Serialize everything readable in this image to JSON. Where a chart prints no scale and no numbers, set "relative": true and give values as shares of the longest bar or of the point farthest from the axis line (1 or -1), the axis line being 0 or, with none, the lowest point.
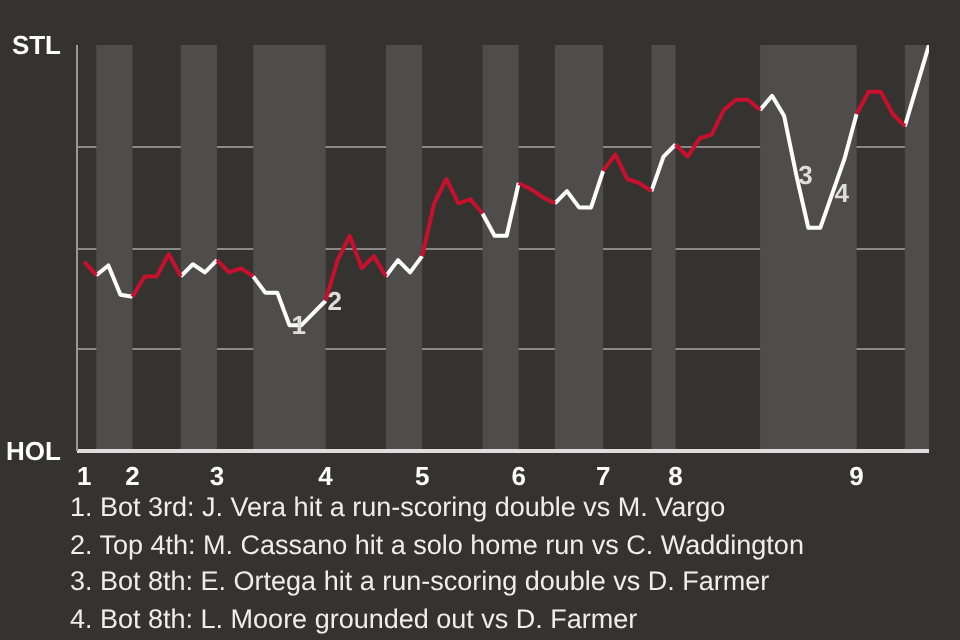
{
  "chart_data": {
    "type": "line",
    "relative": true,
    "grid": "y",
    "categories": [
      "1",
      null,
      null,
      null,
      "2",
      null,
      null,
      null,
      null,
      null,
      null,
      "3",
      null,
      null,
      null,
      null,
      null,
      null,
      null,
      null,
      "4",
      null,
      null,
      null,
      null,
      null,
      null,
      null,
      "5",
      null,
      null,
      null,
      null,
      null,
      null,
      null,
      "6",
      null,
      null,
      null,
      null,
      null,
      null,
      "7",
      null,
      null,
      null,
      null,
      null,
      "8",
      null,
      null,
      null,
      null,
      null,
      null,
      null,
      null,
      null,
      null,
      null,
      null,
      null,
      null,
      "9",
      null,
      null,
      null,
      null,
      null,
      null
    ],
    "series": [
      {
        "color": "#c8102e",
        "values": [
          0.466,
          0.433,
          null,
          null,
          0.38,
          0.43,
          0.43,
          0.485,
          0.43,
          null,
          null,
          0.47,
          0.44,
          0.45,
          0.43,
          null,
          null,
          null,
          null,
          null,
          0.37,
          0.47,
          0.53,
          0.45,
          0.48,
          0.43,
          null,
          null,
          0.48,
          0.61,
          0.67,
          0.61,
          0.62,
          0.585,
          null,
          null,
          0.66,
          0.645,
          0.625,
          0.61,
          null,
          null,
          null,
          0.69,
          0.73,
          0.67,
          0.66,
          0.64,
          null,
          0.755,
          0.725,
          0.77,
          0.78,
          0.84,
          0.865,
          0.865,
          0.84,
          null,
          null,
          null,
          null,
          null,
          null,
          null,
          0.83,
          0.885,
          0.885,
          0.83,
          0.8,
          null,
          null
        ]
      },
      {
        "color": "#ffffff",
        "values": [
          null,
          0.433,
          0.457,
          0.385,
          0.38,
          null,
          null,
          null,
          0.43,
          0.46,
          0.44,
          0.47,
          null,
          null,
          0.43,
          0.39,
          0.39,
          0.31,
          0.31,
          0.34,
          0.37,
          null,
          null,
          null,
          null,
          0.43,
          0.47,
          0.44,
          0.48,
          null,
          null,
          null,
          null,
          0.585,
          0.53,
          0.53,
          0.66,
          null,
          null,
          0.61,
          0.64,
          0.6,
          0.6,
          0.69,
          null,
          null,
          null,
          0.64,
          0.725,
          0.755,
          null,
          null,
          null,
          null,
          null,
          null,
          0.84,
          0.875,
          0.825,
          0.68,
          0.55,
          0.55,
          0.635,
          0.72,
          0.83,
          null,
          null,
          null,
          0.8,
          0.9,
          1.0
        ]
      }
    ],
    "annotations": [
      "STL",
      "HOL",
      {
        "text": "1",
        "y": 0.31
      },
      {
        "text": "2",
        "y": 0.37
      },
      {
        "text": "3",
        "y": 0.68
      },
      {
        "text": "4",
        "y": 0.635
      },
      "1. Bot 3rd: J. Vera hit a run-scoring double vs M. Vargo",
      "2. Top 4th: M. Cassano hit a solo home run vs C. Waddington",
      "3. Bot 8th: E. Ortega hit a run-scoring double vs D. Farmer",
      "4. Bot 8th: L. Moore grounded out vs D. Farmer"
    ]
  }
}
